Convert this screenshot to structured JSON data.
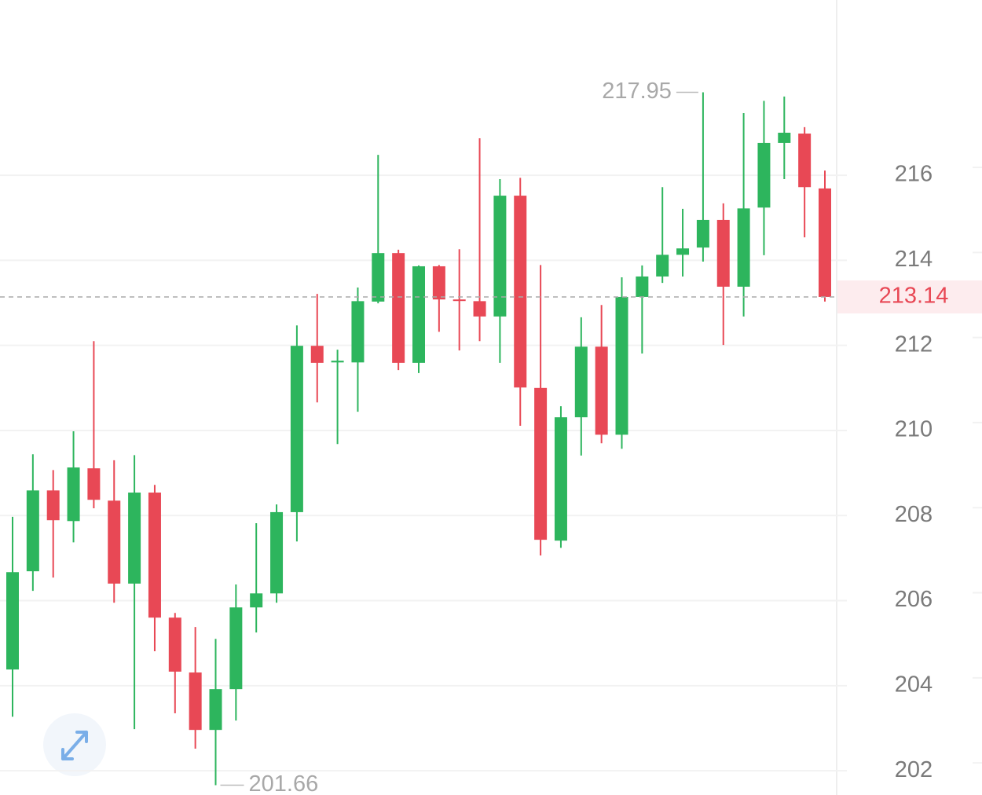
{
  "chart_data": {
    "type": "candlestick",
    "ylim": [
      201.43,
      220.12
    ],
    "yticks": [
      202,
      204,
      206,
      208,
      210,
      212,
      214,
      216
    ],
    "grid": true,
    "up_color": "#2db55d",
    "down_color": "#e84855",
    "series": [
      {
        "open": [
          204.38,
          206.69,
          208.59,
          207.87,
          209.11,
          208.35,
          206.4,
          208.54,
          205.6,
          204.31,
          202.96,
          203.92,
          205.84,
          206.17,
          208.08,
          211.99,
          211.6,
          211.6,
          213.03,
          214.17,
          211.59,
          213.86,
          213.08,
          213.04,
          212.68,
          215.52,
          211.0,
          207.41,
          210.31,
          211.97,
          209.9,
          213.14,
          213.62,
          214.13,
          214.3,
          214.95,
          213.38,
          215.24,
          216.76,
          216.98,
          215.69
        ],
        "high": [
          207.97,
          209.44,
          209.07,
          209.98,
          212.1,
          209.3,
          209.42,
          208.72,
          205.71,
          205.38,
          205.1,
          206.38,
          207.82,
          208.26,
          212.47,
          213.21,
          211.9,
          213.36,
          216.48,
          214.25,
          213.88,
          213.89,
          214.26,
          216.87,
          215.91,
          215.94,
          213.89,
          210.57,
          212.66,
          212.95,
          213.6,
          213.88,
          215.72,
          215.21,
          217.95,
          215.34,
          217.46,
          217.75,
          217.85,
          217.13,
          216.11
        ],
        "low": [
          203.27,
          206.23,
          206.54,
          207.37,
          208.17,
          205.95,
          202.98,
          204.81,
          203.35,
          202.52,
          201.66,
          203.18,
          205.25,
          205.95,
          207.39,
          210.66,
          209.68,
          210.44,
          212.99,
          211.42,
          211.35,
          212.32,
          211.88,
          212.1,
          211.59,
          210.11,
          207.06,
          207.24,
          209.41,
          209.7,
          209.57,
          211.81,
          213.47,
          213.62,
          213.97,
          212.01,
          212.68,
          214.12,
          215.91,
          214.54,
          213.03
        ],
        "close": [
          206.67,
          208.59,
          207.89,
          209.13,
          208.37,
          206.4,
          208.54,
          205.6,
          204.33,
          202.96,
          203.92,
          205.84,
          206.17,
          208.08,
          211.99,
          211.59,
          211.64,
          213.04,
          214.17,
          211.59,
          213.86,
          213.08,
          213.06,
          212.68,
          215.52,
          211.01,
          207.43,
          210.31,
          211.97,
          209.9,
          213.14,
          213.62,
          214.13,
          214.28,
          214.95,
          213.38,
          215.22,
          216.76,
          217.0,
          215.72,
          213.14
        ]
      }
    ],
    "max_label": "217.95",
    "min_label": "201.66",
    "last_price": 213.14
  }
}
